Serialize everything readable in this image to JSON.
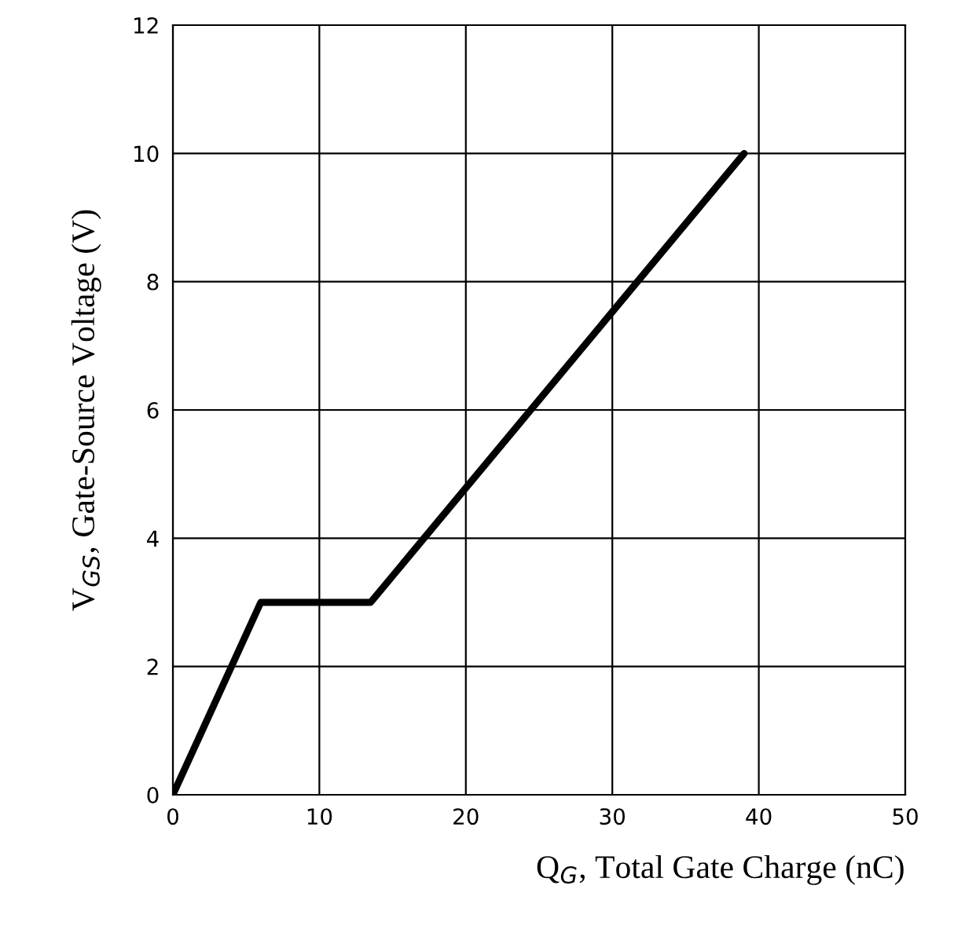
{
  "chart_data": {
    "type": "line",
    "xlabel": "Q$_{G}$, Total Gate Charge (nC)",
    "ylabel": "V$_{GS}$, Gate-Source Voltage (V)",
    "x": [
      0,
      6,
      13.5,
      39
    ],
    "series": [
      {
        "color": "#000000",
        "values": [
          0,
          3,
          3,
          10
        ]
      }
    ],
    "xlim": [
      0,
      50
    ],
    "xticks": [
      0,
      10,
      20,
      30,
      40,
      50
    ],
    "ylim": [
      0,
      12
    ],
    "yticks": [
      0,
      2,
      4,
      6,
      8,
      10,
      12
    ],
    "grid": true,
    "marker": "none",
    "line_style": "solid"
  }
}
